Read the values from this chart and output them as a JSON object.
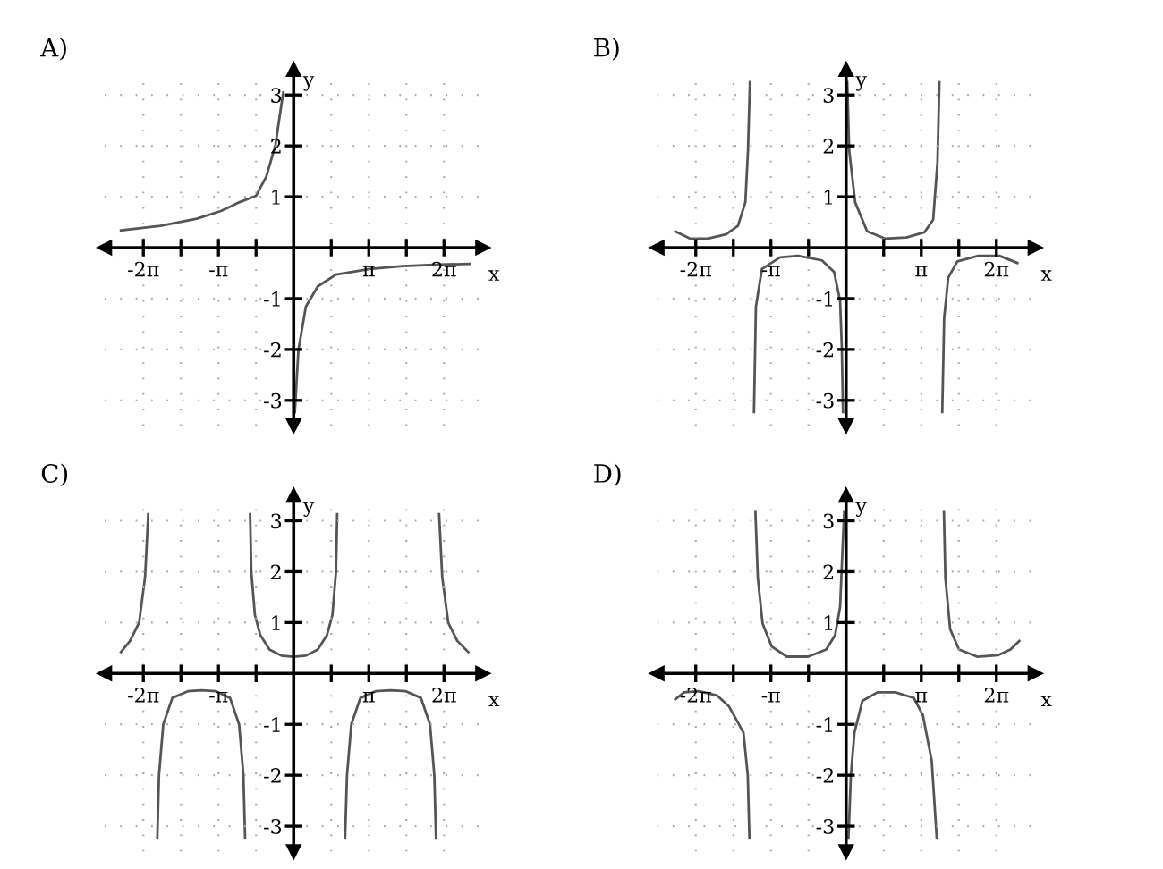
{
  "chart_data": [
    {
      "type": "line",
      "title": "A)",
      "xlabel": "x",
      "ylabel": "y",
      "xlim": [
        -7.9,
        7.9
      ],
      "ylim": [
        -3.5,
        3.5
      ],
      "xticks": [
        {
          "value": -6.283,
          "label": "-2π"
        },
        {
          "value": -4.712,
          "label": null
        },
        {
          "value": -3.142,
          "label": "-π"
        },
        {
          "value": -1.571,
          "label": null
        },
        {
          "value": 1.571,
          "label": null
        },
        {
          "value": 3.142,
          "label": "π"
        },
        {
          "value": 4.712,
          "label": null
        },
        {
          "value": 6.283,
          "label": "2π"
        }
      ],
      "yticks": [
        -3,
        -2,
        -1,
        1,
        2,
        3
      ],
      "grid": true,
      "series": [
        {
          "color": "#555555",
          "x": [
            -7.22,
            -5.57,
            -4.05,
            -3.04,
            -2.28,
            -1.57,
            -1.14,
            -0.76,
            -0.51,
            -0.43
          ],
          "values": [
            0.34,
            0.43,
            0.57,
            0.72,
            0.89,
            1.02,
            1.4,
            2.02,
            2.82,
            3.05
          ]
        },
        {
          "color": "#555555",
          "x": [
            0.05,
            0.2,
            0.51,
            1.01,
            1.77,
            3.17,
            4.56,
            6.08,
            7.35
          ],
          "values": [
            -3.23,
            -2.01,
            -1.16,
            -0.76,
            -0.53,
            -0.42,
            -0.36,
            -0.33,
            -0.32
          ]
        }
      ]
    },
    {
      "type": "line",
      "title": "B)",
      "xlabel": "x",
      "ylabel": "y",
      "xlim": [
        -7.9,
        7.9
      ],
      "ylim": [
        -3.5,
        3.5
      ],
      "xticks": [
        {
          "value": -6.283,
          "label": "-2π"
        },
        {
          "value": -4.712,
          "label": null
        },
        {
          "value": -3.142,
          "label": "-π"
        },
        {
          "value": -1.571,
          "label": null
        },
        {
          "value": 1.571,
          "label": null
        },
        {
          "value": 3.142,
          "label": "π"
        },
        {
          "value": 4.712,
          "label": null
        },
        {
          "value": 6.283,
          "label": "2π"
        }
      ],
      "yticks": [
        -3,
        -2,
        -1,
        1,
        2,
        3
      ],
      "grid": true,
      "series": [
        {
          "color": "#555555",
          "x": [
            -7.14,
            -6.53,
            -5.78,
            -5.02,
            -4.52,
            -4.21,
            -4.1,
            -4.02
          ],
          "values": [
            0.32,
            0.18,
            0.18,
            0.26,
            0.43,
            0.89,
            1.91,
            3.25
          ]
        },
        {
          "color": "#555555",
          "x": [
            -3.85,
            -3.77,
            -3.52,
            -2.76,
            -2.01,
            -1.01,
            -0.5,
            -0.25,
            -0.18,
            -0.13
          ],
          "values": [
            -3.23,
            -1.16,
            -0.42,
            -0.19,
            -0.16,
            -0.25,
            -0.48,
            -1.05,
            -1.95,
            -3.23
          ]
        },
        {
          "color": "#555555",
          "x": [
            0.05,
            0.13,
            0.38,
            0.88,
            1.63,
            2.51,
            3.27,
            3.64,
            3.82,
            3.9
          ],
          "values": [
            3.25,
            1.91,
            0.89,
            0.32,
            0.18,
            0.2,
            0.3,
            0.55,
            1.68,
            3.25
          ]
        },
        {
          "color": "#555555",
          "x": [
            4.02,
            4.1,
            4.27,
            4.65,
            5.53,
            6.41,
            7.16
          ],
          "values": [
            -3.23,
            -1.38,
            -0.59,
            -0.27,
            -0.16,
            -0.16,
            -0.3
          ]
        }
      ]
    },
    {
      "type": "line",
      "title": "C)",
      "xlabel": "x",
      "ylabel": "y",
      "xlim": [
        -7.9,
        7.9
      ],
      "ylim": [
        -3.5,
        3.5
      ],
      "xticks": [
        {
          "value": -6.283,
          "label": "-2π"
        },
        {
          "value": -4.712,
          "label": null
        },
        {
          "value": -3.142,
          "label": "-π"
        },
        {
          "value": -1.571,
          "label": null
        },
        {
          "value": 1.571,
          "label": null
        },
        {
          "value": 3.142,
          "label": "π"
        },
        {
          "value": 4.712,
          "label": null
        },
        {
          "value": 6.283,
          "label": "2π"
        }
      ],
      "yticks": [
        -3,
        -2,
        -1,
        1,
        2,
        3
      ],
      "grid": true,
      "series": [
        {
          "color": "#555555",
          "x": [
            -7.22,
            -6.84,
            -6.46,
            -6.21,
            -6.08
          ],
          "values": [
            0.42,
            0.64,
            1.0,
            1.9,
            3.13
          ]
        },
        {
          "color": "#555555",
          "x": [
            -5.7,
            -5.63,
            -5.45,
            -5.07,
            -4.43,
            -3.85,
            -3.24,
            -2.66,
            -2.28,
            -2.1,
            -2.03
          ],
          "values": [
            -3.24,
            -2.0,
            -1.0,
            -0.48,
            -0.35,
            -0.33,
            -0.35,
            -0.48,
            -1.0,
            -2.0,
            -3.24
          ]
        },
        {
          "color": "#555555",
          "x": [
            -1.82,
            -1.77,
            -1.62,
            -1.39,
            -1.01,
            -0.51,
            0,
            0.51,
            1.01,
            1.39,
            1.62,
            1.77,
            1.82
          ],
          "values": [
            3.13,
            2.0,
            1.15,
            0.75,
            0.47,
            0.35,
            0.33,
            0.35,
            0.47,
            0.75,
            1.15,
            2.0,
            3.13
          ]
        },
        {
          "color": "#555555",
          "x": [
            2.15,
            2.23,
            2.41,
            2.79,
            3.42,
            4.05,
            4.69,
            5.32,
            5.7,
            5.88,
            5.95
          ],
          "values": [
            -3.24,
            -2.0,
            -1.0,
            -0.48,
            -0.35,
            -0.33,
            -0.35,
            -0.48,
            -1.0,
            -2.0,
            -3.24
          ]
        },
        {
          "color": "#555555",
          "x": [
            6.08,
            6.21,
            6.46,
            6.84,
            7.3
          ],
          "values": [
            3.13,
            1.9,
            1.0,
            0.64,
            0.42
          ]
        }
      ]
    },
    {
      "type": "line",
      "title": "D)",
      "xlabel": "x",
      "ylabel": "y",
      "xlim": [
        -7.9,
        7.9
      ],
      "ylim": [
        -3.5,
        3.5
      ],
      "xticks": [
        {
          "value": -6.283,
          "label": "-2π"
        },
        {
          "value": -4.712,
          "label": null
        },
        {
          "value": -3.142,
          "label": "-π"
        },
        {
          "value": -1.571,
          "label": null
        },
        {
          "value": 1.571,
          "label": null
        },
        {
          "value": 3.142,
          "label": "π"
        },
        {
          "value": 4.712,
          "label": null
        },
        {
          "value": 6.283,
          "label": "2π"
        }
      ],
      "yticks": [
        -3,
        -2,
        -1,
        1,
        2,
        3
      ],
      "grid": true,
      "series": [
        {
          "color": "#555555",
          "x": [
            -7.14,
            -6.77,
            -6.14,
            -5.4,
            -4.89,
            -4.29,
            -4.11,
            -4.04
          ],
          "values": [
            -0.51,
            -0.37,
            -0.35,
            -0.43,
            -0.65,
            -1.16,
            -2.0,
            -3.24
          ]
        },
        {
          "color": "#555555",
          "x": [
            -3.79,
            -3.69,
            -3.49,
            -3.11,
            -2.48,
            -1.59,
            -0.83,
            -0.46,
            -0.25,
            -0.15,
            -0.08
          ],
          "values": [
            3.17,
            1.88,
            0.98,
            0.53,
            0.33,
            0.33,
            0.47,
            0.75,
            1.31,
            2.44,
            3.17
          ]
        },
        {
          "color": "#555555",
          "x": [
            0.1,
            0.2,
            0.35,
            0.68,
            1.31,
            2.06,
            2.83,
            3.21,
            3.58,
            3.79
          ],
          "values": [
            -3.24,
            -2.0,
            -1.16,
            -0.54,
            -0.37,
            -0.37,
            -0.48,
            -0.82,
            -1.72,
            -3.24
          ]
        },
        {
          "color": "#555555",
          "x": [
            4.09,
            4.15,
            4.35,
            4.72,
            5.48,
            6.36,
            6.87,
            7.24
          ],
          "values": [
            3.17,
            1.88,
            0.87,
            0.47,
            0.33,
            0.36,
            0.47,
            0.64
          ]
        }
      ]
    }
  ]
}
